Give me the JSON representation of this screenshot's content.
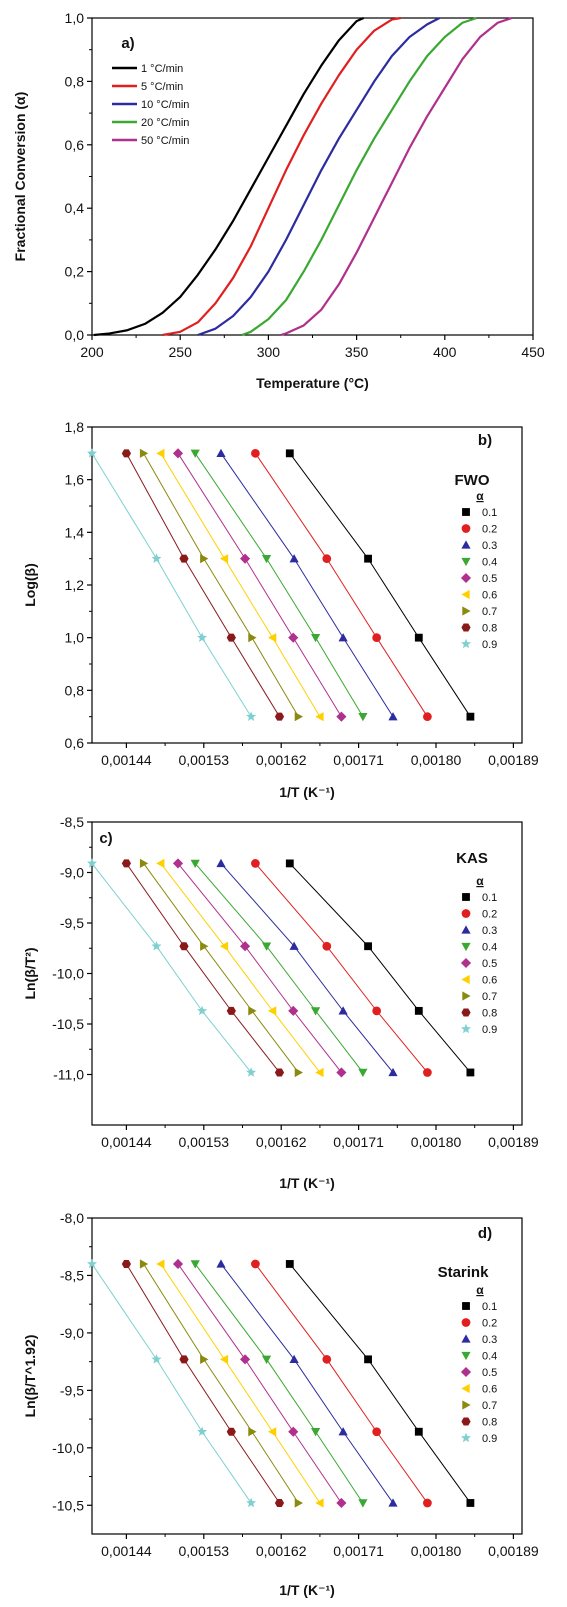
{
  "chart_data": [
    {
      "type": "line",
      "panel_label": "a)",
      "xlabel": "Temperature (°C)",
      "ylabel": "Fractional Conversion (α)",
      "xlim": [
        200,
        450
      ],
      "ylim": [
        0,
        1
      ],
      "xticks": [
        200,
        250,
        300,
        350,
        400,
        450
      ],
      "xtick_labels": [
        "200",
        "250",
        "300",
        "350",
        "400",
        "450"
      ],
      "yticks": [
        0,
        0.2,
        0.4,
        0.6,
        0.8,
        1.0
      ],
      "ytick_labels": [
        "0,0",
        "0,2",
        "0,4",
        "0,6",
        "0,8",
        "1,0"
      ],
      "legend_position": "top-left",
      "grid": false,
      "series": [
        {
          "name": "1 °C/min",
          "color": "#000000",
          "x": [
            201,
            210,
            220,
            230,
            240,
            250,
            260,
            270,
            280,
            290,
            300,
            310,
            320,
            330,
            340,
            350,
            354
          ],
          "y": [
            0.0,
            0.005,
            0.015,
            0.035,
            0.07,
            0.12,
            0.19,
            0.27,
            0.36,
            0.46,
            0.56,
            0.66,
            0.76,
            0.85,
            0.93,
            0.99,
            1.0
          ]
        },
        {
          "name": "5 °C/min",
          "color": "#e02020",
          "x": [
            240,
            250,
            260,
            270,
            280,
            290,
            300,
            310,
            320,
            330,
            340,
            350,
            360,
            370,
            375
          ],
          "y": [
            0.0,
            0.01,
            0.04,
            0.1,
            0.18,
            0.28,
            0.4,
            0.52,
            0.63,
            0.73,
            0.82,
            0.9,
            0.96,
            0.995,
            1.0
          ]
        },
        {
          "name": "10 °C/min",
          "color": "#2c2ca0",
          "x": [
            260,
            270,
            280,
            290,
            300,
            310,
            320,
            330,
            340,
            350,
            360,
            370,
            380,
            390,
            397
          ],
          "y": [
            0.0,
            0.02,
            0.06,
            0.12,
            0.2,
            0.3,
            0.41,
            0.52,
            0.62,
            0.71,
            0.8,
            0.88,
            0.94,
            0.98,
            1.0
          ]
        },
        {
          "name": "20 °C/min",
          "color": "#3aa832",
          "x": [
            285,
            290,
            300,
            310,
            320,
            330,
            340,
            350,
            360,
            370,
            380,
            390,
            400,
            410,
            418
          ],
          "y": [
            0.0,
            0.01,
            0.05,
            0.11,
            0.2,
            0.3,
            0.41,
            0.52,
            0.62,
            0.71,
            0.8,
            0.88,
            0.94,
            0.985,
            1.0
          ]
        },
        {
          "name": "50 °C/min",
          "color": "#b0308e",
          "x": [
            307,
            310,
            320,
            330,
            340,
            350,
            360,
            370,
            380,
            390,
            400,
            410,
            420,
            430,
            438
          ],
          "y": [
            0.0,
            0.005,
            0.03,
            0.08,
            0.16,
            0.26,
            0.37,
            0.48,
            0.59,
            0.69,
            0.78,
            0.87,
            0.94,
            0.985,
            1.0
          ]
        }
      ]
    },
    {
      "type": "scatter",
      "panel_label": "b)",
      "method_label": "FWO",
      "xlabel": "1/T (K⁻¹)",
      "ylabel": "Log(β)",
      "xlim": [
        0.0014,
        0.0019
      ],
      "ylim": [
        0.6,
        1.8
      ],
      "xticks": [
        0.00144,
        0.00153,
        0.00162,
        0.00171,
        0.0018,
        0.00189
      ],
      "xtick_labels": [
        "0,00144",
        "0,00153",
        "0,00162",
        "0,00171",
        "0,00180",
        "0,00189"
      ],
      "yticks": [
        0.6,
        0.8,
        1.0,
        1.2,
        1.4,
        1.6,
        1.8
      ],
      "ytick_labels": [
        "0,6",
        "0,8",
        "1,0",
        "1,2",
        "1,4",
        "1,6",
        "1,8"
      ],
      "legend_title": "α",
      "legend_position": "right",
      "series": [
        {
          "name": "0.1",
          "color": "#000000",
          "marker": "square",
          "x": [
            0.00184,
            0.00178,
            0.001721,
            0.00163
          ],
          "y": [
            0.7,
            1.0,
            1.3,
            1.7
          ]
        },
        {
          "name": "0.2",
          "color": "#e02020",
          "marker": "circle",
          "x": [
            0.00179,
            0.001731,
            0.001673,
            0.00159
          ],
          "y": [
            0.7,
            1.0,
            1.3,
            1.7
          ]
        },
        {
          "name": "0.3",
          "color": "#2c2ca0",
          "marker": "triangle-up",
          "x": [
            0.00175,
            0.001692,
            0.001635,
            0.00155
          ],
          "y": [
            0.7,
            1.0,
            1.3,
            1.7
          ]
        },
        {
          "name": "0.4",
          "color": "#3aa832",
          "marker": "triangle-down",
          "x": [
            0.001715,
            0.00166,
            0.001603,
            0.00152
          ],
          "y": [
            0.7,
            1.0,
            1.3,
            1.7
          ]
        },
        {
          "name": "0.5",
          "color": "#b0308e",
          "marker": "diamond",
          "x": [
            0.00169,
            0.001634,
            0.001578,
            0.0015
          ],
          "y": [
            0.7,
            1.0,
            1.3,
            1.7
          ]
        },
        {
          "name": "0.6",
          "color": "#ffd000",
          "marker": "triangle-left",
          "x": [
            0.001665,
            0.00161,
            0.001554,
            0.00148
          ],
          "y": [
            0.7,
            1.0,
            1.3,
            1.7
          ]
        },
        {
          "name": "0.7",
          "color": "#8a8a10",
          "marker": "triangle-right",
          "x": [
            0.00164,
            0.001586,
            0.00153,
            0.00146
          ],
          "y": [
            0.7,
            1.0,
            1.3,
            1.7
          ]
        },
        {
          "name": "0.8",
          "color": "#8a1a1a",
          "marker": "hexagon",
          "x": [
            0.001618,
            0.001562,
            0.001507,
            0.00144
          ],
          "y": [
            0.7,
            1.0,
            1.3,
            1.7
          ]
        },
        {
          "name": "0.9",
          "color": "#7fd0d0",
          "marker": "star",
          "x": [
            0.001585,
            0.001528,
            0.001475,
            0.0014
          ],
          "y": [
            0.7,
            1.0,
            1.3,
            1.7
          ]
        }
      ]
    },
    {
      "type": "scatter",
      "panel_label": "c)",
      "method_label": "KAS",
      "xlabel": "1/T (K⁻¹)",
      "ylabel": "Ln(β/T²)",
      "xlim": [
        0.0014,
        0.0019
      ],
      "ylim": [
        -11.5,
        -8.5
      ],
      "xticks": [
        0.00144,
        0.00153,
        0.00162,
        0.00171,
        0.0018,
        0.00189
      ],
      "xtick_labels": [
        "0,00144",
        "0,00153",
        "0,00162",
        "0,00171",
        "0,00180",
        "0,00189"
      ],
      "yticks": [
        -11.0,
        -10.5,
        -10.0,
        -9.5,
        -9.0,
        -8.5
      ],
      "ytick_labels": [
        "-11,0",
        "-10,5",
        "-10,0",
        "-9,5",
        "-9,0",
        "-8,5"
      ],
      "legend_title": "α",
      "legend_position": "right",
      "series": [
        {
          "name": "0.1",
          "color": "#000000",
          "marker": "square",
          "x": [
            0.00184,
            0.00178,
            0.001721,
            0.00163
          ],
          "y": [
            -10.98,
            -10.37,
            -9.73,
            -8.91
          ]
        },
        {
          "name": "0.2",
          "color": "#e02020",
          "marker": "circle",
          "x": [
            0.00179,
            0.001731,
            0.001673,
            0.00159
          ],
          "y": [
            -10.98,
            -10.37,
            -9.73,
            -8.91
          ]
        },
        {
          "name": "0.3",
          "color": "#2c2ca0",
          "marker": "triangle-up",
          "x": [
            0.00175,
            0.001692,
            0.001635,
            0.00155
          ],
          "y": [
            -10.98,
            -10.37,
            -9.73,
            -8.91
          ]
        },
        {
          "name": "0.4",
          "color": "#3aa832",
          "marker": "triangle-down",
          "x": [
            0.001715,
            0.00166,
            0.001603,
            0.00152
          ],
          "y": [
            -10.98,
            -10.37,
            -9.73,
            -8.91
          ]
        },
        {
          "name": "0.5",
          "color": "#b0308e",
          "marker": "diamond",
          "x": [
            0.00169,
            0.001634,
            0.001578,
            0.0015
          ],
          "y": [
            -10.98,
            -10.37,
            -9.73,
            -8.91
          ]
        },
        {
          "name": "0.6",
          "color": "#ffd000",
          "marker": "triangle-left",
          "x": [
            0.001665,
            0.00161,
            0.001554,
            0.00148
          ],
          "y": [
            -10.98,
            -10.37,
            -9.73,
            -8.91
          ]
        },
        {
          "name": "0.7",
          "color": "#8a8a10",
          "marker": "triangle-right",
          "x": [
            0.00164,
            0.001586,
            0.00153,
            0.00146
          ],
          "y": [
            -10.98,
            -10.37,
            -9.73,
            -8.91
          ]
        },
        {
          "name": "0.8",
          "color": "#8a1a1a",
          "marker": "hexagon",
          "x": [
            0.001618,
            0.001562,
            0.001507,
            0.00144
          ],
          "y": [
            -10.98,
            -10.37,
            -9.73,
            -8.91
          ]
        },
        {
          "name": "0.9",
          "color": "#7fd0d0",
          "marker": "star",
          "x": [
            0.001585,
            0.001528,
            0.001475,
            0.0014
          ],
          "y": [
            -10.98,
            -10.37,
            -9.73,
            -8.91
          ]
        }
      ]
    },
    {
      "type": "scatter",
      "panel_label": "d)",
      "method_label": "Starink",
      "xlabel": "1/T (K⁻¹)",
      "ylabel": "Ln(β/T^1.92)",
      "xlim": [
        0.0014,
        0.0019
      ],
      "ylim": [
        -10.75,
        -8.0
      ],
      "xticks": [
        0.00144,
        0.00153,
        0.00162,
        0.00171,
        0.0018,
        0.00189
      ],
      "xtick_labels": [
        "0,00144",
        "0,00153",
        "0,00162",
        "0,00171",
        "0,00180",
        "0,00189"
      ],
      "yticks": [
        -10.5,
        -10.0,
        -9.5,
        -9.0,
        -8.5,
        -8.0
      ],
      "ytick_labels": [
        "-10,5",
        "-10,0",
        "-9,5",
        "-9,0",
        "-8,5",
        "-8,0"
      ],
      "legend_title": "α",
      "legend_position": "right",
      "series": [
        {
          "name": "0.1",
          "color": "#000000",
          "marker": "square",
          "x": [
            0.00184,
            0.00178,
            0.001721,
            0.00163
          ],
          "y": [
            -10.48,
            -9.86,
            -9.23,
            -8.4
          ]
        },
        {
          "name": "0.2",
          "color": "#e02020",
          "marker": "circle",
          "x": [
            0.00179,
            0.001731,
            0.001673,
            0.00159
          ],
          "y": [
            -10.48,
            -9.86,
            -9.23,
            -8.4
          ]
        },
        {
          "name": "0.3",
          "color": "#2c2ca0",
          "marker": "triangle-up",
          "x": [
            0.00175,
            0.001692,
            0.001635,
            0.00155
          ],
          "y": [
            -10.48,
            -9.86,
            -9.23,
            -8.4
          ]
        },
        {
          "name": "0.4",
          "color": "#3aa832",
          "marker": "triangle-down",
          "x": [
            0.001715,
            0.00166,
            0.001603,
            0.00152
          ],
          "y": [
            -10.48,
            -9.86,
            -9.23,
            -8.4
          ]
        },
        {
          "name": "0.5",
          "color": "#b0308e",
          "marker": "diamond",
          "x": [
            0.00169,
            0.001634,
            0.001578,
            0.0015
          ],
          "y": [
            -10.48,
            -9.86,
            -9.23,
            -8.4
          ]
        },
        {
          "name": "0.6",
          "color": "#ffd000",
          "marker": "triangle-left",
          "x": [
            0.001665,
            0.00161,
            0.001554,
            0.00148
          ],
          "y": [
            -10.48,
            -9.86,
            -9.23,
            -8.4
          ]
        },
        {
          "name": "0.7",
          "color": "#8a8a10",
          "marker": "triangle-right",
          "x": [
            0.00164,
            0.001586,
            0.00153,
            0.00146
          ],
          "y": [
            -10.48,
            -9.86,
            -9.23,
            -8.4
          ]
        },
        {
          "name": "0.8",
          "color": "#8a1a1a",
          "marker": "hexagon",
          "x": [
            0.001618,
            0.001562,
            0.001507,
            0.00144
          ],
          "y": [
            -10.48,
            -9.86,
            -9.23,
            -8.4
          ]
        },
        {
          "name": "0.9",
          "color": "#7fd0d0",
          "marker": "star",
          "x": [
            0.001585,
            0.001528,
            0.001475,
            0.0014
          ],
          "y": [
            -10.48,
            -9.86,
            -9.23,
            -8.4
          ]
        }
      ]
    }
  ]
}
